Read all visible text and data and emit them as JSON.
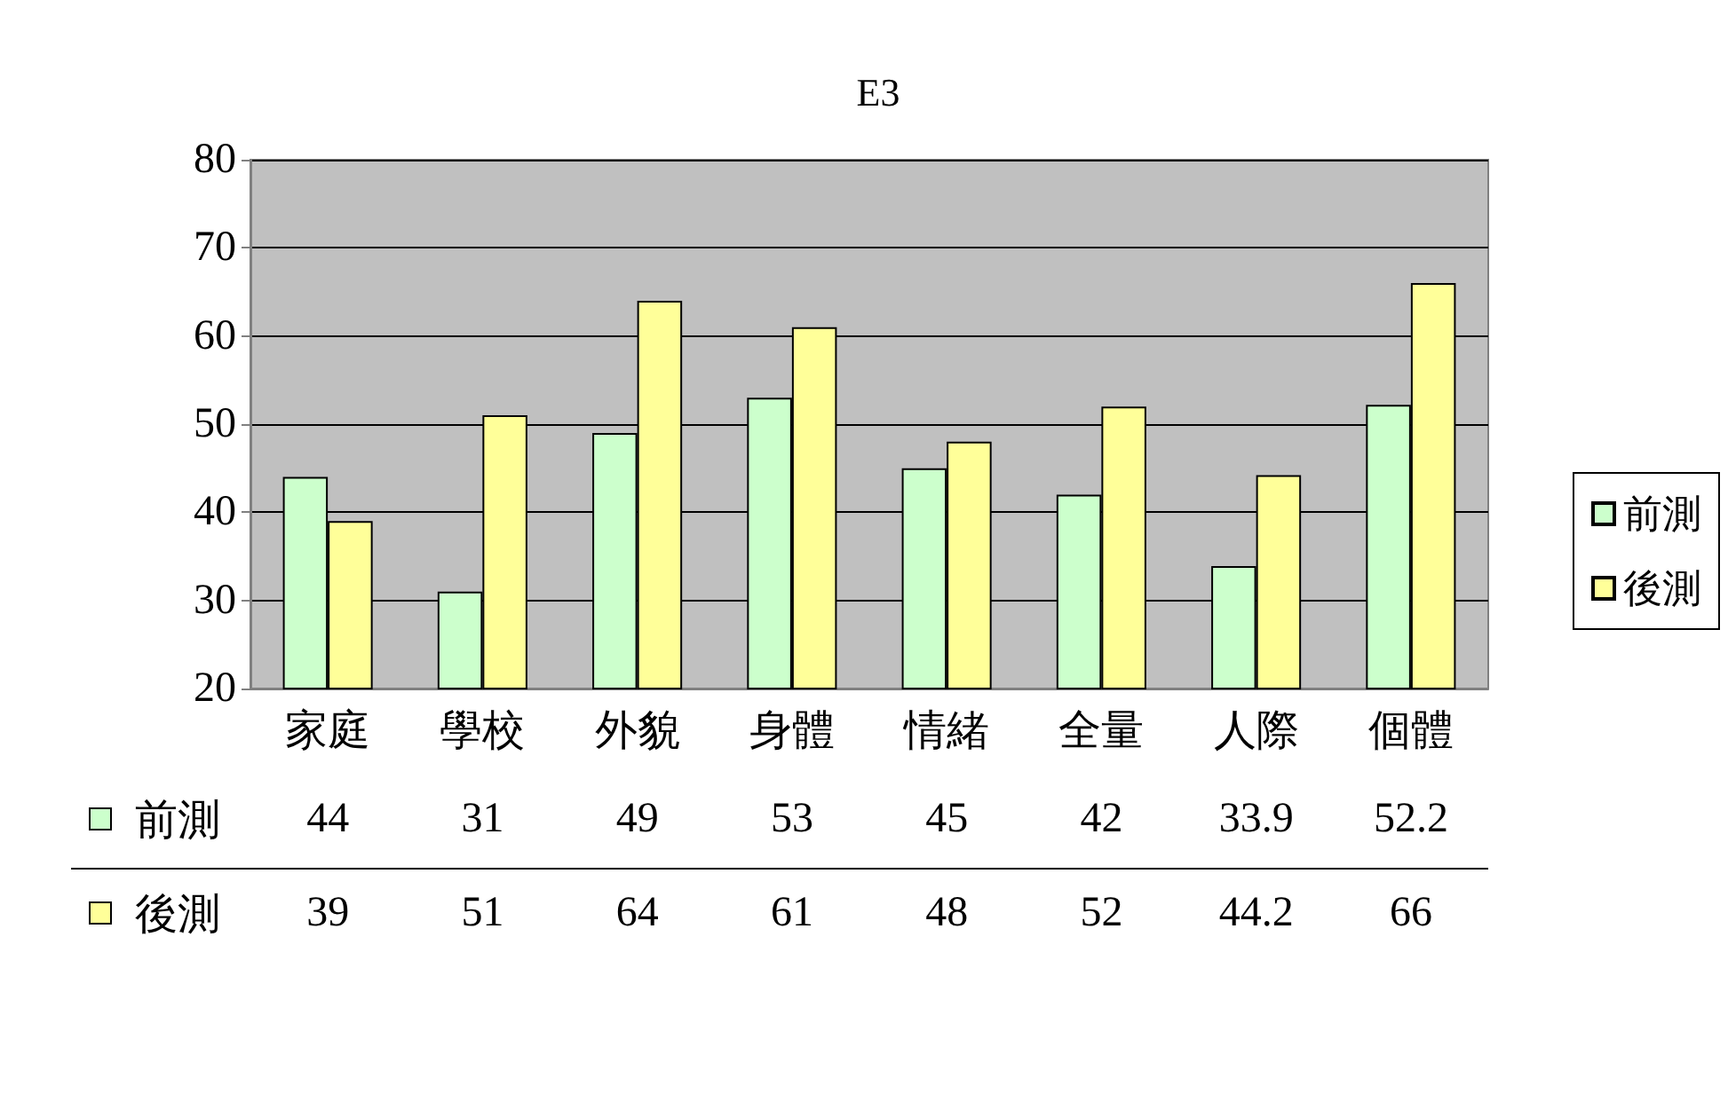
{
  "chart_data": {
    "type": "bar",
    "title": "E3",
    "categories": [
      "家庭",
      "學校",
      "外貌",
      "身體",
      "情緒",
      "全量",
      "人際",
      "個體"
    ],
    "series": [
      {
        "name": "前測",
        "color": "#ccffcc",
        "values": [
          44,
          31,
          49,
          53,
          45,
          42,
          33.9,
          52.2
        ]
      },
      {
        "name": "後測",
        "color": "#ffff99",
        "values": [
          39,
          51,
          64,
          61,
          48,
          52,
          44.2,
          66
        ]
      }
    ],
    "ylim": [
      20,
      80
    ],
    "yticks": [
      20,
      30,
      40,
      50,
      60,
      70,
      80
    ],
    "grid": "y",
    "legend": "right",
    "data_labels": true
  }
}
